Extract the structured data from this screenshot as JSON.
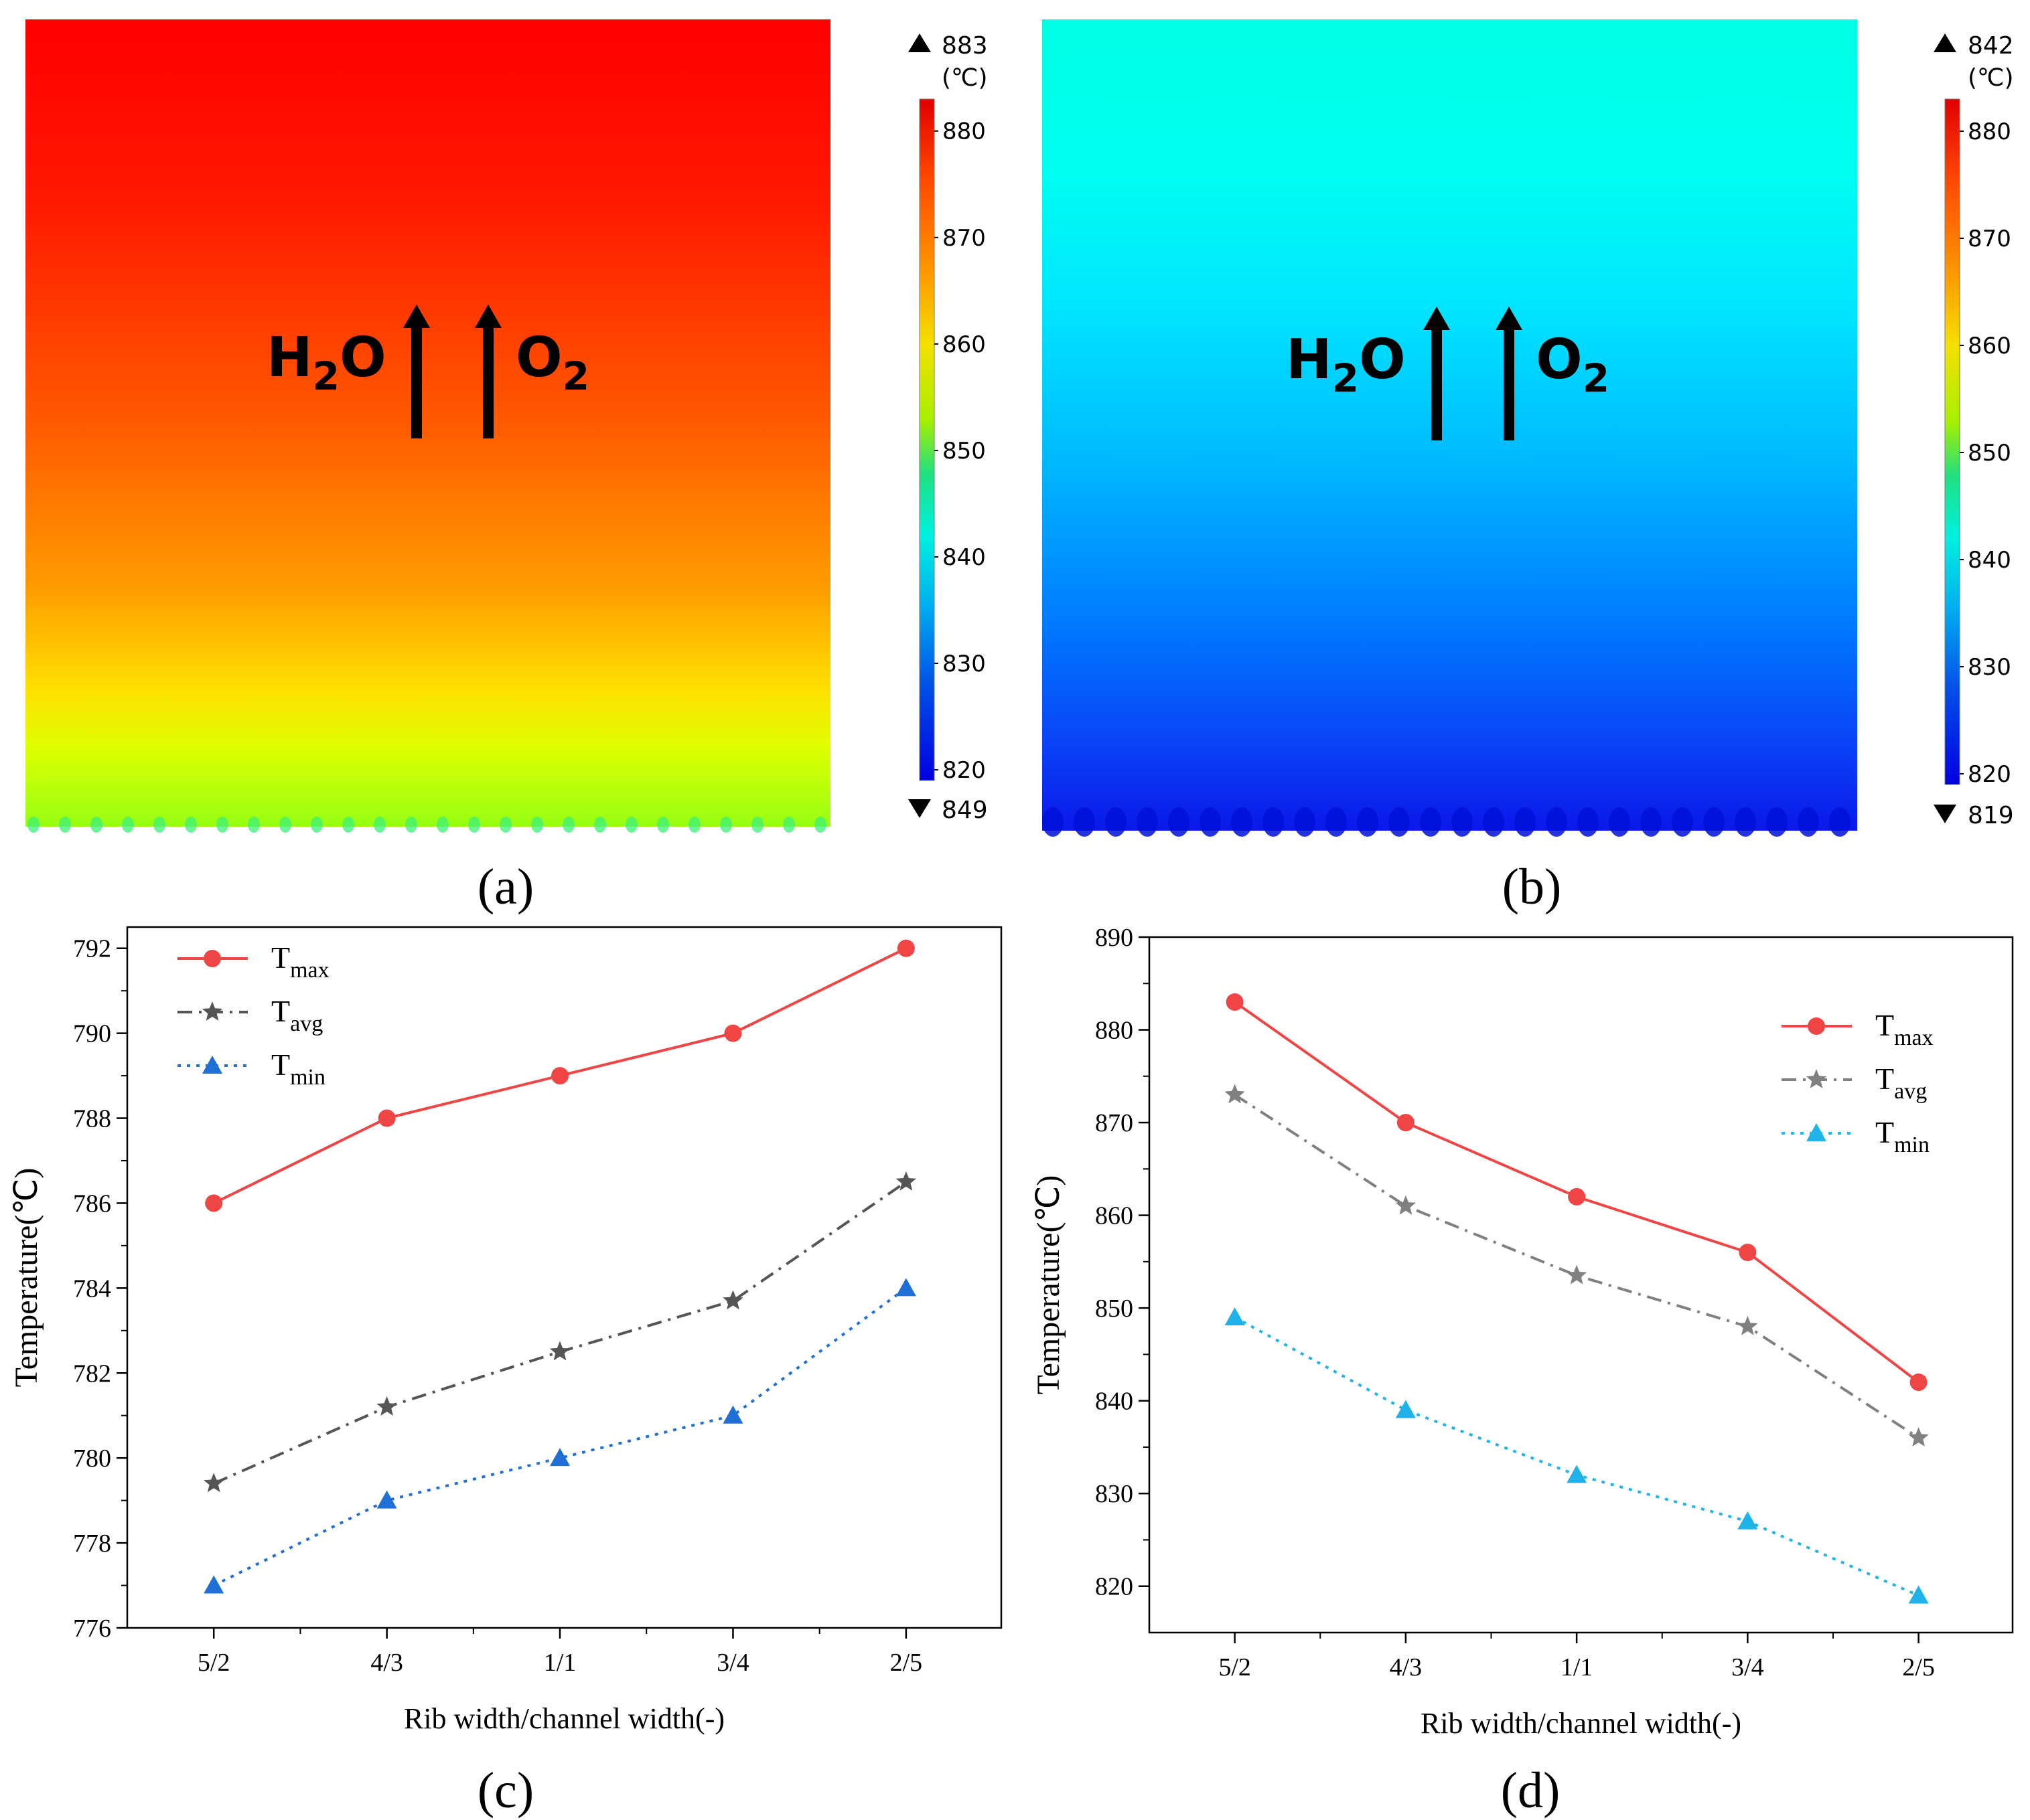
{
  "panels": {
    "a": {
      "label": "(a)",
      "arrow_labels": {
        "left_main": "H",
        "left_sub": "2",
        "left_end": "O",
        "right_main": "O",
        "right_sub": "2"
      },
      "colorbar": {
        "unit": "(℃)",
        "max_marker": "883",
        "min_marker": "849",
        "ticks": [
          "880",
          "870",
          "860",
          "850",
          "840",
          "830",
          "820"
        ],
        "range": [
          819,
          883
        ]
      }
    },
    "b": {
      "label": "(b)",
      "arrow_labels": {
        "left_main": "H",
        "left_sub": "2",
        "left_end": "O",
        "right_main": "O",
        "right_sub": "2"
      },
      "colorbar": {
        "unit": "(℃)",
        "max_marker": "842",
        "min_marker": "819",
        "ticks": [
          "880",
          "870",
          "860",
          "850",
          "840",
          "830",
          "820"
        ],
        "range": [
          819,
          883
        ]
      }
    },
    "c": {
      "label": "(c)"
    },
    "d": {
      "label": "(d)"
    }
  },
  "colors": {
    "tmax_c": "#f04545",
    "tavg_c": "#555555",
    "tmin_c": "#1f6fd6",
    "tmax_d": "#f04545",
    "tavg_d": "#808080",
    "tmin_d": "#1fb3ea",
    "contour_a_top": "#ff0000",
    "contour_a_bottom": "#aaff00",
    "contour_b_top": "#00ffe0",
    "contour_b_bottom": "#0a28ee"
  },
  "chart_data": [
    {
      "id": "c",
      "type": "line",
      "categories": [
        "5/2",
        "4/3",
        "1/1",
        "3/4",
        "2/5"
      ],
      "xlabel": "Rib width/channel width(-)",
      "ylabel": "Temperature(℃)",
      "ylim": [
        776,
        792.5
      ],
      "yticks": [
        "776",
        "778",
        "780",
        "782",
        "784",
        "786",
        "788",
        "790",
        "792"
      ],
      "legend_position": "top-left",
      "series": [
        {
          "name": "T",
          "sub": "max",
          "values": [
            786,
            788,
            789,
            790,
            792
          ],
          "marker": "circle",
          "dash": "solid"
        },
        {
          "name": "T",
          "sub": "avg",
          "values": [
            779.4,
            781.2,
            782.5,
            783.7,
            786.5
          ],
          "marker": "star",
          "dash": "dashdot"
        },
        {
          "name": "T",
          "sub": "min",
          "values": [
            777,
            779,
            780,
            781,
            784
          ],
          "marker": "triangle",
          "dash": "dot"
        }
      ]
    },
    {
      "id": "d",
      "type": "line",
      "categories": [
        "5/2",
        "4/3",
        "1/1",
        "3/4",
        "2/5"
      ],
      "xlabel": "Rib width/channel width(-)",
      "ylabel": "Temperature(℃)",
      "ylim": [
        815,
        890
      ],
      "yticks": [
        "820",
        "830",
        "840",
        "850",
        "860",
        "870",
        "880",
        "890"
      ],
      "legend_position": "top-right",
      "series": [
        {
          "name": "T",
          "sub": "max",
          "values": [
            883,
            870,
            862,
            856,
            842
          ],
          "marker": "circle",
          "dash": "solid"
        },
        {
          "name": "T",
          "sub": "avg",
          "values": [
            873,
            861,
            853.5,
            848,
            836
          ],
          "marker": "star",
          "dash": "dashdot"
        },
        {
          "name": "T",
          "sub": "min",
          "values": [
            849,
            839,
            832,
            827,
            819
          ],
          "marker": "triangle",
          "dash": "dot"
        }
      ]
    }
  ]
}
